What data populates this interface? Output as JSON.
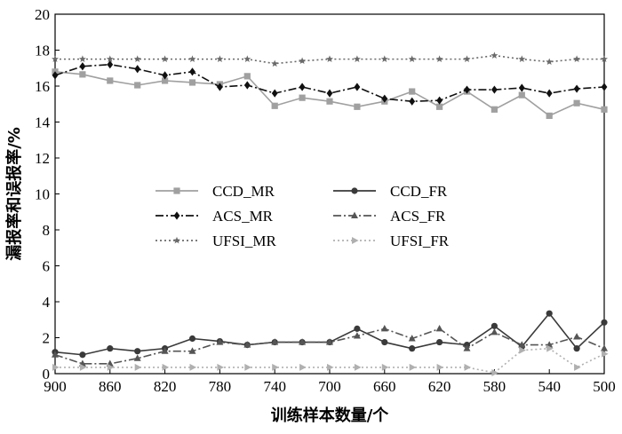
{
  "chart_data": {
    "type": "line",
    "xlabel": "训练样本数量/个",
    "ylabel": "漏报率和误报率/%",
    "xlim": [
      900,
      500
    ],
    "ylim": [
      0,
      20
    ],
    "xticks": [
      900,
      860,
      820,
      780,
      740,
      700,
      660,
      620,
      580,
      540,
      500
    ],
    "yticks": [
      0,
      2,
      4,
      6,
      8,
      10,
      12,
      14,
      16,
      18,
      20
    ],
    "grid": false,
    "legend_position": "center-left",
    "x": [
      900,
      880,
      860,
      840,
      820,
      800,
      780,
      760,
      740,
      720,
      700,
      680,
      660,
      640,
      620,
      600,
      580,
      560,
      540,
      520,
      500
    ],
    "series": [
      {
        "name": "CCD_MR",
        "color": "#a0a0a0",
        "dash": "solid",
        "marker": "square",
        "values": [
          16.8,
          16.65,
          16.3,
          16.05,
          16.3,
          16.2,
          16.1,
          16.55,
          14.9,
          15.35,
          15.15,
          14.85,
          15.15,
          15.7,
          14.85,
          15.7,
          14.7,
          15.5,
          14.35,
          15.05,
          14.7
        ]
      },
      {
        "name": "ACS_MR",
        "color": "#101010",
        "dash": "dashdot",
        "marker": "diamond",
        "values": [
          16.6,
          17.1,
          17.2,
          16.95,
          16.6,
          16.8,
          15.95,
          16.05,
          15.6,
          15.95,
          15.6,
          15.95,
          15.3,
          15.15,
          15.2,
          15.8,
          15.8,
          15.9,
          15.6,
          15.85,
          15.95
        ]
      },
      {
        "name": "UFSI_MR",
        "color": "#6a6a6a",
        "dash": "dotted",
        "marker": "star",
        "values": [
          17.5,
          17.5,
          17.5,
          17.5,
          17.5,
          17.5,
          17.5,
          17.5,
          17.25,
          17.4,
          17.5,
          17.5,
          17.5,
          17.5,
          17.5,
          17.5,
          17.7,
          17.5,
          17.35,
          17.5,
          17.5
        ]
      },
      {
        "name": "CCD_FR",
        "color": "#3a3a3a",
        "dash": "solid",
        "marker": "circle",
        "values": [
          1.2,
          1.05,
          1.4,
          1.25,
          1.4,
          1.95,
          1.8,
          1.6,
          1.75,
          1.75,
          1.75,
          2.5,
          1.75,
          1.4,
          1.75,
          1.6,
          2.65,
          1.5,
          3.35,
          1.4,
          2.85
        ]
      },
      {
        "name": "ACS_FR",
        "color": "#555555",
        "dash": "dashdot",
        "marker": "triangle",
        "values": [
          1.05,
          0.55,
          0.55,
          0.85,
          1.25,
          1.25,
          1.75,
          1.6,
          1.75,
          1.75,
          1.75,
          2.1,
          2.5,
          1.95,
          2.5,
          1.4,
          2.3,
          1.6,
          1.6,
          2.05,
          1.4
        ]
      },
      {
        "name": "UFSI_FR",
        "color": "#b0b0b0",
        "dash": "dotted",
        "marker": "triangle-right",
        "values": [
          0.35,
          0.35,
          0.35,
          0.35,
          0.35,
          0.35,
          0.35,
          0.35,
          0.35,
          0.35,
          0.35,
          0.35,
          0.35,
          0.35,
          0.35,
          0.35,
          0.05,
          1.3,
          1.4,
          0.35,
          1.1
        ]
      }
    ]
  }
}
